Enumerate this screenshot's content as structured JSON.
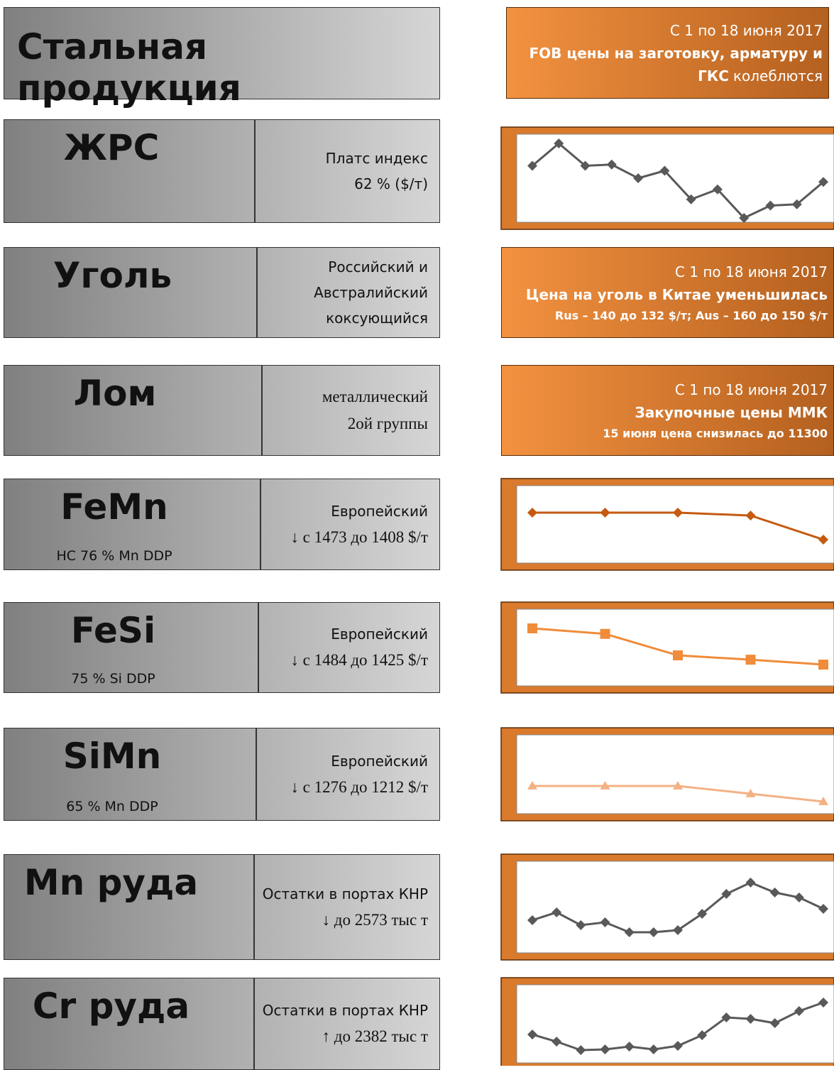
{
  "header": {
    "title": "Стальная продукция",
    "note": [
      [
        {
          "text": "С 1 по 18 июня 2017",
          "bold": false
        }
      ],
      [
        {
          "text": "FOB цены на заготовку, арматуру и",
          "bold": true
        }
      ],
      [
        {
          "text": "ГКС",
          "bold": true
        },
        {
          "text": "колеблются",
          "bold": false
        }
      ]
    ]
  },
  "rows": [
    {
      "name": "ЖРС",
      "desc": [
        "Платс индекс",
        "62 % ($/т)"
      ],
      "chart": {
        "type": "line",
        "color": "#595959",
        "marker": "diamond",
        "values": [
          58.2,
          60,
          58.2,
          58.3,
          57.2,
          57.8,
          55.5,
          56.3,
          54,
          55,
          55.1,
          56.9
        ]
      }
    },
    {
      "name": "Уголь",
      "desc": [
        "Российский и",
        "Австралийский",
        "коксующийся"
      ],
      "note": [
        [
          {
            "text": "С 1 по 18 июня 2017",
            "bold": false
          }
        ],
        [
          {
            "text": "Цена на уголь в Китае уменьшилась",
            "bold": true
          }
        ],
        [
          {
            "text": "Rus – 140 до 132 $/т; Aus – 160 до 150 $/т",
            "bold": true
          }
        ]
      ]
    },
    {
      "name": "Лом",
      "desc": [
        "металлический",
        "2ой группы"
      ],
      "note": [
        [
          {
            "text": "С 1 по 18 июня 2017",
            "bold": false
          }
        ],
        [
          {
            "text": "Закупочные цены ММК",
            "bold": true
          }
        ],
        [
          {
            "text": "15 июня цена снизилась до 11300",
            "bold": true
          }
        ]
      ]
    },
    {
      "name": "FeMn",
      "sub": "HC 76 % Mn DDP",
      "desc": [
        "Европейский",
        "↓ с 1473 до 1408 $/т"
      ],
      "chart": {
        "type": "line",
        "color": "#c55a11",
        "marker": "diamond",
        "values": [
          1473,
          1473,
          1473,
          1466,
          1408
        ]
      }
    },
    {
      "name": "FeSi",
      "sub": "75 % Si DDP",
      "desc": [
        "Европейский",
        "↓ с 1484 до 1425 $/т"
      ],
      "chart": {
        "type": "line",
        "color": "#f08c3a",
        "marker": "square",
        "values": [
          1484,
          1475,
          1440,
          1433,
          1425
        ]
      }
    },
    {
      "name": "SiMn",
      "sub": "65 % Mn DDP",
      "desc": [
        "Европейский",
        "↓ с 1276 до 1212 $/т"
      ],
      "chart": {
        "type": "line",
        "color": "#f4b183",
        "marker": "triangle",
        "values": [
          1276,
          1276,
          1276,
          1244,
          1212
        ]
      }
    },
    {
      "name": "Mn руда",
      "desc": [
        "Остатки в портах КНР",
        "↓ до 2573 тыс т"
      ],
      "chart": {
        "type": "line",
        "color": "#595959",
        "marker": "diamond",
        "values": [
          2413,
          2523,
          2343,
          2383,
          2243,
          2243,
          2273,
          2503,
          2783,
          2943,
          2803,
          2733,
          2573
        ]
      }
    },
    {
      "name": "Cr руда",
      "desc": [
        "Остатки в портах КНР",
        "↑ до 2382 тыс т"
      ],
      "chart": {
        "type": "line",
        "color": "#595959",
        "marker": "diamond",
        "values": [
          1932,
          1832,
          1712,
          1722,
          1762,
          1722,
          1772,
          1922,
          2172,
          2152,
          2092,
          2262,
          2382
        ]
      }
    }
  ]
}
